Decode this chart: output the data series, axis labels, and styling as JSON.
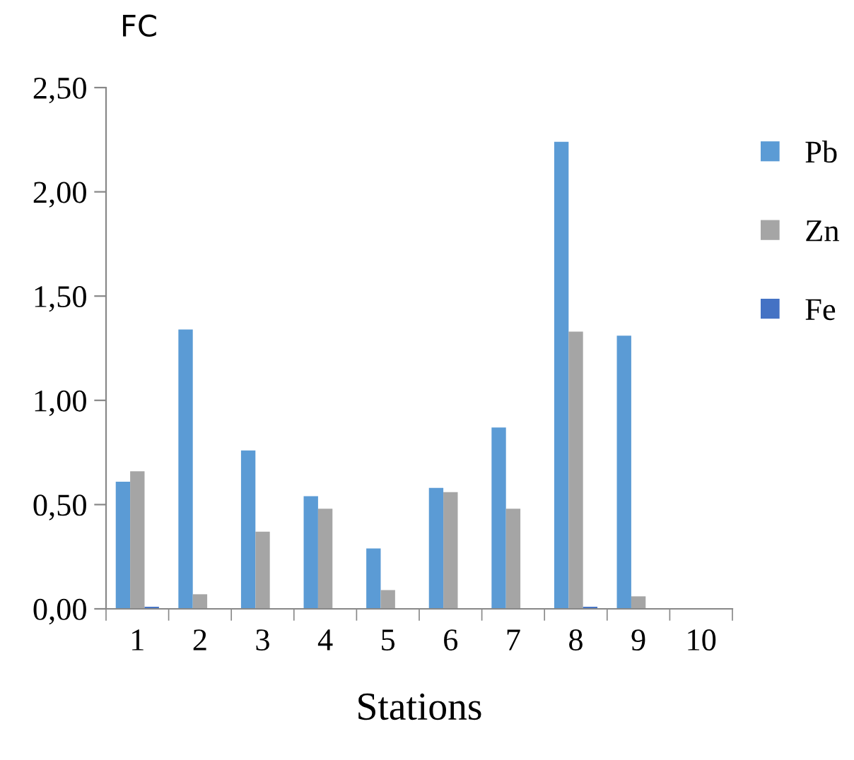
{
  "chart_data": {
    "type": "bar",
    "ylabel": "FC",
    "xlabel": "Stations",
    "categories": [
      "1",
      "2",
      "3",
      "4",
      "5",
      "6",
      "7",
      "8",
      "9",
      "10"
    ],
    "series": [
      {
        "name": "Pb",
        "color": "#5b9bd5",
        "values": [
          0.61,
          1.34,
          0.76,
          0.54,
          0.29,
          0.58,
          0.87,
          2.24,
          1.31,
          0
        ]
      },
      {
        "name": "Zn",
        "color": "#a5a5a5",
        "values": [
          0.66,
          0.07,
          0.37,
          0.48,
          0.09,
          0.56,
          0.48,
          1.33,
          0.06,
          0
        ]
      },
      {
        "name": "Fe",
        "color": "#4472c4",
        "values": [
          0.01,
          0,
          0,
          0,
          0,
          0,
          0,
          0.01,
          0,
          0
        ]
      }
    ],
    "ylim": [
      0,
      2.5
    ],
    "yticks": [
      {
        "value": 0,
        "label": "0,00"
      },
      {
        "value": 0.5,
        "label": "0,50"
      },
      {
        "value": 1,
        "label": "1,00"
      },
      {
        "value": 1.5,
        "label": "1,50"
      },
      {
        "value": 2,
        "label": "2,00"
      },
      {
        "value": 2.5,
        "label": "2,50"
      }
    ],
    "grid": false,
    "legend": "right"
  }
}
